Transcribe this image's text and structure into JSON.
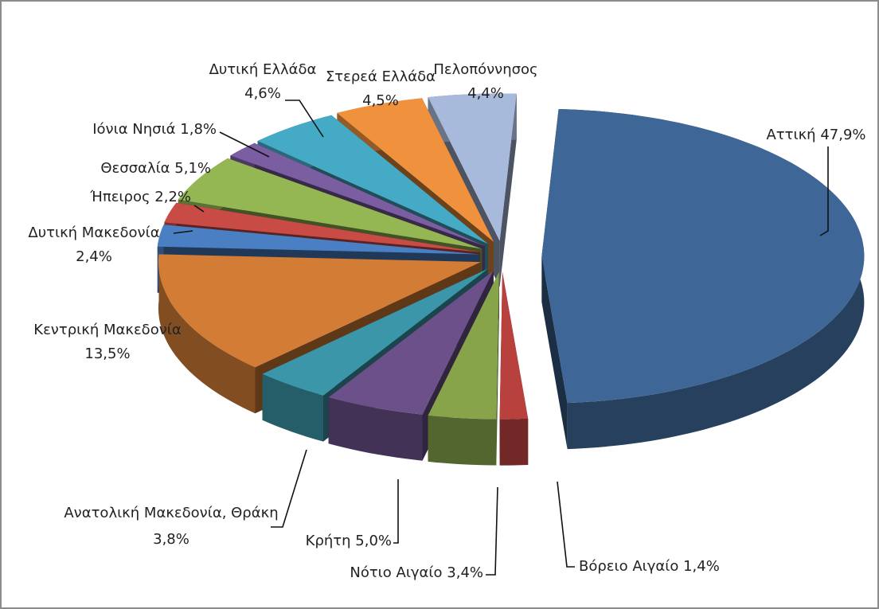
{
  "chart_data": {
    "type": "pie",
    "categories": [
      "Αττική",
      "Βόρειο Αιγαίο",
      "Νότιο Αιγαίο",
      "Κρήτη",
      "Ανατολική Μακεδονία, Θράκη",
      "Κεντρική Μακεδονία",
      "Δυτική Μακεδονία",
      "Ήπειρος",
      "Θεσσαλία",
      "Ιόνια Νησιά",
      "Δυτική Ελλάδα",
      "Στερεά Ελλάδα",
      "Πελοπόννησος"
    ],
    "values": [
      47.9,
      1.4,
      3.4,
      5.0,
      3.8,
      13.5,
      2.4,
      2.2,
      5.1,
      1.8,
      4.6,
      4.5,
      4.4
    ],
    "value_labels": [
      "47,9%",
      "1,4%",
      "3,4%",
      "5,0%",
      "3,8%",
      "13,5%",
      "2,4%",
      "2,2%",
      "5,1%",
      "1,8%",
      "4,6%",
      "4,5%",
      "4,4%"
    ],
    "colors": [
      "#3e6797",
      "#b8403d",
      "#87a44b",
      "#6b5089",
      "#3b96a9",
      "#d27c36",
      "#4a7fc4",
      "#c94b46",
      "#94b653",
      "#7b5da1",
      "#45aac5",
      "#f0923d",
      "#a8badb"
    ]
  }
}
